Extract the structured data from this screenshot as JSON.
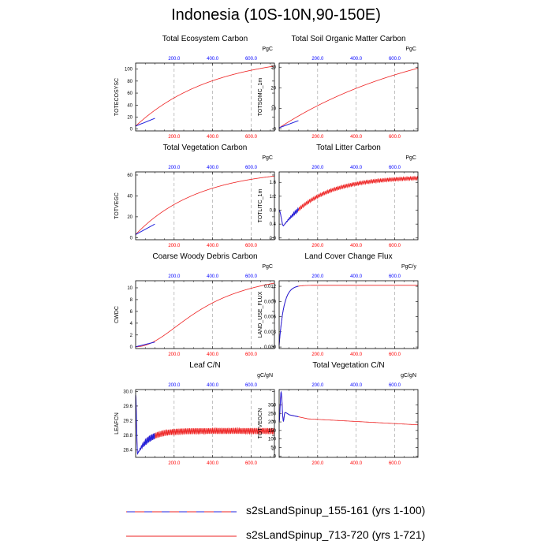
{
  "page_title": "Indonesia (10S-10N,90-150E)",
  "colors": {
    "dashed_line": "#2222dd",
    "solid_line": "#ee2222",
    "top_tick": "#0000ff",
    "bottom_tick": "#ff0000",
    "grid": "#999999"
  },
  "legend": [
    {
      "label": "s2sLandSpinup_155-161 (yrs 1-100)",
      "style": "dashed",
      "color": "#2222dd"
    },
    {
      "label": "s2sLandSpinup_713-720 (yrs 1-721)",
      "style": "solid",
      "color": "#ee2222"
    }
  ],
  "chart_data": [
    {
      "type": "line",
      "title": "Total Ecosystem Carbon",
      "ylabel": "TOTECOSYSC",
      "units": "PgC",
      "xlim": [
        0,
        721
      ],
      "ylim": [
        -3,
        110
      ],
      "xticks": [
        "200.0",
        "400.0",
        "600.0"
      ],
      "yticks": [
        0,
        20,
        40,
        60,
        80,
        100
      ],
      "curve": {
        "kind": "sat",
        "start": 5,
        "end": 105,
        "k": 1.8
      },
      "blue": {
        "kind": "line",
        "to": 18
      }
    },
    {
      "type": "line",
      "title": "Total Soil Organic Matter Carbon",
      "ylabel": "TOTSOMC_1m",
      "units": "PgC",
      "xlim": [
        0,
        721
      ],
      "ylim": [
        -1,
        32
      ],
      "xticks": [
        "200.0",
        "400.0",
        "600.0"
      ],
      "yticks": [
        0,
        10,
        20,
        30
      ],
      "curve": {
        "kind": "sat",
        "start": 0.5,
        "end": 29.5,
        "k": 0.9
      },
      "blue": {
        "kind": "line",
        "to": 4
      }
    },
    {
      "type": "line",
      "title": "Total Vegetation Carbon",
      "ylabel": "TOTVEGC",
      "units": "PgC",
      "xlim": [
        0,
        721
      ],
      "ylim": [
        -2,
        63
      ],
      "xticks": [
        "200.0",
        "400.0",
        "600.0"
      ],
      "yticks": [
        0,
        20,
        40,
        60
      ],
      "curve": {
        "kind": "sat",
        "start": 3,
        "end": 59,
        "k": 2.2
      },
      "blue": {
        "kind": "line",
        "to": 13
      }
    },
    {
      "type": "line",
      "title": "Total Litter Carbon",
      "ylabel": "TOTLITC_1m",
      "units": "PgC",
      "xlim": [
        0,
        721
      ],
      "ylim": [
        -0.05,
        1.9
      ],
      "xticks": [
        "200.0",
        "400.0",
        "600.0"
      ],
      "yticks": [
        "0.0",
        "0.4",
        "0.8",
        "1.2",
        "1.6"
      ],
      "curve": {
        "kind": "dip",
        "start": 0.8,
        "min": 0.35,
        "end": 1.72,
        "k": 3.6,
        "osc": 0.05
      },
      "blue": {
        "kind": "follow"
      }
    },
    {
      "type": "line",
      "title": "Coarse Woody Debris Carbon",
      "ylabel": "CWDC",
      "units": "PgC",
      "xlim": [
        0,
        721
      ],
      "ylim": [
        -0.3,
        11.2
      ],
      "xticks": [
        "200.0",
        "400.0",
        "600.0"
      ],
      "yticks": [
        0,
        2,
        4,
        6,
        8,
        10
      ],
      "curve": {
        "kind": "sig",
        "start": 0,
        "end": 13.5,
        "k": 2.6
      },
      "blue": {
        "kind": "line",
        "to": 0.8
      }
    },
    {
      "type": "line",
      "title": "Land Cover Change Flux",
      "ylabel": "LAND_USE_FLUX",
      "units": "PgC/y",
      "xlim": [
        0,
        721
      ],
      "ylim": [
        -0.0003,
        0.0131
      ],
      "xticks": [
        "200.0",
        "400.0",
        "600.0"
      ],
      "yticks": [
        "0.000",
        "0.003",
        "0.006",
        "0.009",
        "0.012"
      ],
      "curve": {
        "kind": "jump",
        "start": 0.0003,
        "end": 0.0122,
        "k": 30
      },
      "blue": {
        "kind": "follow"
      }
    },
    {
      "type": "line",
      "title": "Leaf C/N",
      "ylabel": "LEAFCN",
      "units": "gC/gN",
      "xlim": [
        0,
        721
      ],
      "ylim": [
        28.2,
        30.05
      ],
      "xticks": [
        "200.0",
        "400.0",
        "600.0"
      ],
      "yticks": [
        "28.4",
        "28.8",
        "29.2",
        "29.6",
        "30.0"
      ],
      "curve": {
        "kind": "leaf",
        "start": 29.9,
        "min": 28.3,
        "end": 28.92,
        "k": 12,
        "osc": 0.08
      },
      "blue": {
        "kind": "follow"
      }
    },
    {
      "type": "line",
      "title": "Total Vegetation C/N",
      "ylabel": "TOTVEGCN",
      "units": "gC/gN",
      "xlim": [
        0,
        721
      ],
      "ylim": [
        -8,
        390
      ],
      "xticks": [
        "200.0",
        "400.0",
        "600.0"
      ],
      "yticks": [
        0,
        50,
        100,
        150,
        200,
        250,
        300
      ],
      "curve": {
        "kind": "spike",
        "start": 200,
        "peak": 375,
        "end": 183
      },
      "blue": {
        "kind": "follow"
      }
    }
  ]
}
